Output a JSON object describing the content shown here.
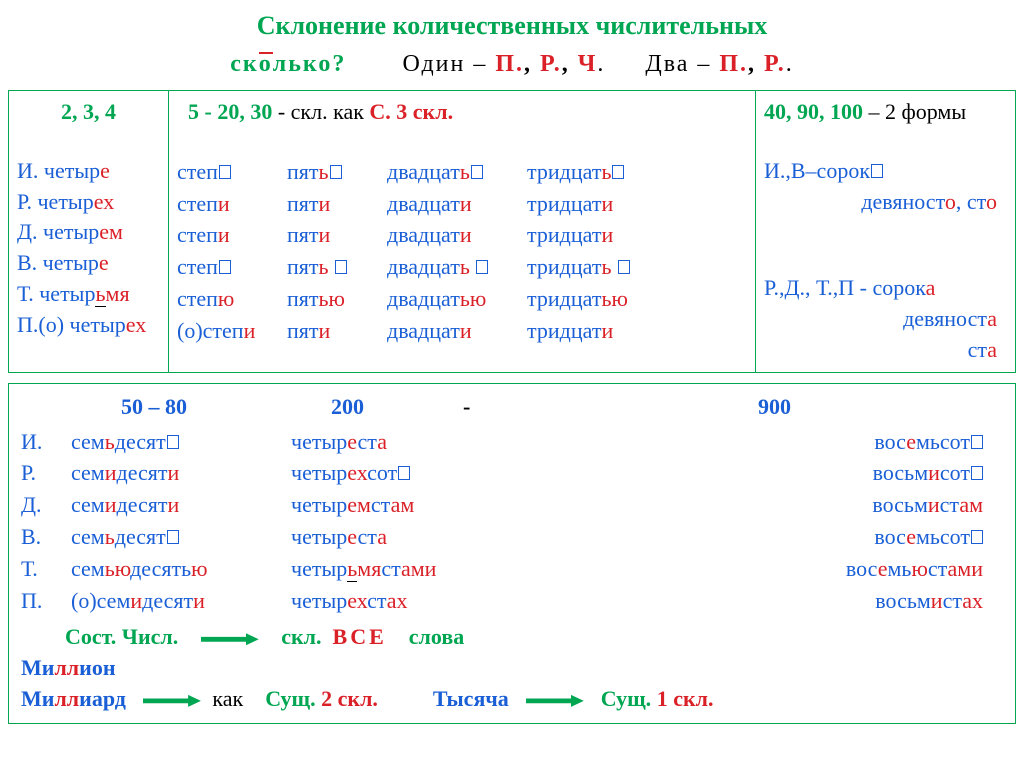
{
  "title": "Склонение количественных числительных",
  "sub": {
    "skolko_pre": "ск",
    "skolko_stress": "о",
    "skolko_post": "лько?",
    "odin": "Один –",
    "p": "П.",
    "r": "Р.",
    "ch": "Ч",
    "dva": "Два –"
  },
  "col1": {
    "head": "2, 3, 4",
    "cases": [
      "И.",
      "Р.",
      "Д.",
      "В.",
      "Т.",
      "П.(о)"
    ],
    "stem": "четыр",
    "ends": [
      "е",
      "ех",
      "ем",
      "е",
      "ьмя",
      "ех"
    ],
    "tvUnderline": "ь"
  },
  "col2": {
    "head_a": "5  -  20, 30",
    "head_b": " -  скл. как  ",
    "head_c": "С. 3 скл.",
    "stepStem": "степ",
    "stepEnds_box": [
      true,
      false,
      false,
      true,
      false,
      false
    ],
    "stepEnds": [
      "",
      "и",
      "и",
      "",
      "ю",
      "и"
    ],
    "pre_o": "(о)",
    "pyatStem": "пят",
    "pyatEnds": [
      "ь",
      "и",
      "и",
      "ь ",
      "ью",
      "и"
    ],
    "pyat_box": [
      true,
      false,
      false,
      true,
      false,
      false
    ],
    "dvStem": "двадцат",
    "dvEnds": [
      "ь",
      "и",
      "и",
      "ь ",
      "ью",
      "и"
    ],
    "dv_box": [
      true,
      false,
      false,
      true,
      false,
      false
    ],
    "trStem": "тридцат",
    "trEnds": [
      "ь",
      "и",
      "и",
      "ь ",
      "ью",
      "и"
    ],
    "tr_box": [
      true,
      false,
      false,
      true,
      false,
      false
    ]
  },
  "col3": {
    "head_a": "40, 90, 100",
    "head_b": " – 2 формы",
    "l1a": "И.,В–сорок",
    "l2": "девяност",
    "l2e": "о",
    "l2b": ", ст",
    "l2be": "о",
    "l3a": "Р.,Д., Т.,П  -   сорок",
    "l3e": "а",
    "l4": "девяност",
    "l4e": "а",
    "l5": "ст",
    "l5e": "а"
  },
  "bottom": {
    "heads": [
      "50 – 80",
      "200",
      "-",
      "900"
    ],
    "cases": [
      "И.",
      "Р.",
      "Д.",
      "В.",
      "Т.",
      "П."
    ],
    "col1": {
      "stem": "сем",
      "rows": [
        {
          "pre": "",
          "mid": "ь",
          "post": "десят",
          "end": "",
          "box": true
        },
        {
          "pre": "",
          "mid": "и",
          "post": "десят",
          "end": "и",
          "box": false
        },
        {
          "pre": "",
          "mid": "и",
          "post": "десят",
          "end": "и",
          "box": false
        },
        {
          "pre": "",
          "mid": "ь",
          "post": "десят",
          "end": "",
          "box": true
        },
        {
          "pre": "",
          "mid": "ью",
          "post": "десять",
          "end": "ю",
          "box": false
        },
        {
          "pre": "(о)",
          "mid": "и",
          "post": "десят",
          "end": "и",
          "box": false
        }
      ]
    },
    "col2": {
      "stem": "четыр",
      "rows": [
        {
          "mid": "е",
          "post": "ст",
          "end": "а",
          "box": false
        },
        {
          "mid": "ех",
          "post": "сот",
          "end": "",
          "box": true
        },
        {
          "mid": "ем",
          "post": "ст",
          "end": "ам",
          "box": false
        },
        {
          "mid": "е",
          "post": "ст",
          "end": "а",
          "box": false
        },
        {
          "mid": "ьмя",
          "post": "ст",
          "end": "ами",
          "box": false,
          "u": "ь"
        },
        {
          "mid": "ех",
          "post": "ст",
          "end": "ах",
          "box": false
        }
      ]
    },
    "col3": {
      "rows": [
        {
          "pre": "вос",
          "mid": "е",
          "post": "мьсот",
          "end": "",
          "box": true
        },
        {
          "pre": "восьм",
          "mid": "и",
          "post": "сот",
          "end": "",
          "box": true
        },
        {
          "pre": "восьм",
          "mid": "и",
          "post": "ст",
          "end": "ам",
          "box": false
        },
        {
          "pre": "вос",
          "mid": "е",
          "post": "мьсот",
          "end": "",
          "box": true
        },
        {
          "pre": "вос",
          "mid": "е",
          "post": "мь",
          "mid2": "ю",
          "post2": "ст",
          "end": "ами",
          "box": false
        },
        {
          "pre": "восьм",
          "mid": "и",
          "post": "ст",
          "end": "ах",
          "box": false
        }
      ]
    },
    "footer": {
      "sost": "Сост. Числ.",
      "skl": "скл.",
      "vse": "ВСЕ",
      "slova": "слова",
      "million_a": "Ми",
      "million_b": "лл",
      "million_c": "ион",
      "milliard_a": "Ми",
      "milliard_b": "лл",
      "milliard_c": "иард",
      "kak": "как",
      "sush2": "Сущ. ",
      "skl2": "2 скл.",
      "tys": "Тысяча",
      "skl1": "1 скл."
    }
  }
}
